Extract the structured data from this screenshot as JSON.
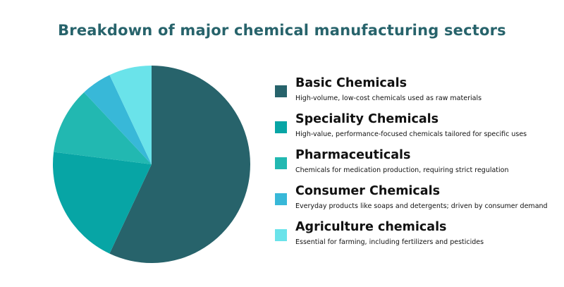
{
  "chart_data": {
    "type": "pie",
    "title": "Breakdown of major chemical manufacturing sectors",
    "start_angle_deg": 0,
    "direction": "clockwise",
    "legend_position": "right",
    "slices": [
      {
        "label": "Basic Chemicals",
        "description": "High-volume, low-cost chemicals used as raw materials",
        "value": 57,
        "color": "#27636b"
      },
      {
        "label": "Speciality Chemicals",
        "description": "High-value, performance-focused chemicals tailored for specific uses",
        "value": 20,
        "color": "#07a5a5"
      },
      {
        "label": "Pharmaceuticals",
        "description": "Chemicals for medication production, requiring strict regulation",
        "value": 11,
        "color": "#22b8b1"
      },
      {
        "label": "Consumer Chemicals",
        "description": "Everyday products like soaps and detergents; driven by consumer demand",
        "value": 5,
        "color": "#38b8d8"
      },
      {
        "label": "Agriculture chemicals",
        "description": "Essential for farming, including fertilizers and pesticides",
        "value": 7,
        "color": "#6ae3ea"
      }
    ]
  }
}
